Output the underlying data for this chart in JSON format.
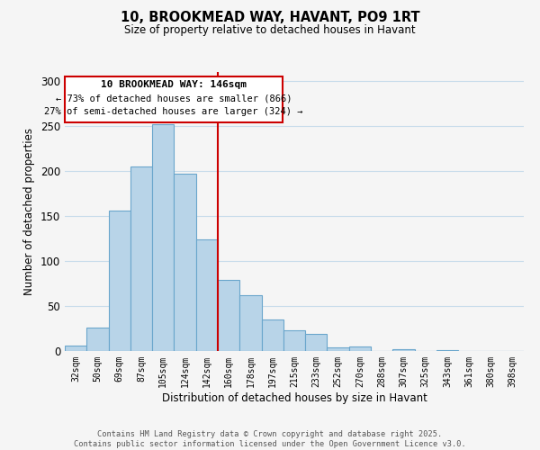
{
  "title": "10, BROOKMEAD WAY, HAVANT, PO9 1RT",
  "subtitle": "Size of property relative to detached houses in Havant",
  "xlabel": "Distribution of detached houses by size in Havant",
  "ylabel": "Number of detached properties",
  "bin_labels": [
    "32sqm",
    "50sqm",
    "69sqm",
    "87sqm",
    "105sqm",
    "124sqm",
    "142sqm",
    "160sqm",
    "178sqm",
    "197sqm",
    "215sqm",
    "233sqm",
    "252sqm",
    "270sqm",
    "288sqm",
    "307sqm",
    "325sqm",
    "343sqm",
    "361sqm",
    "380sqm",
    "398sqm"
  ],
  "bar_heights": [
    6,
    26,
    156,
    205,
    252,
    197,
    124,
    79,
    62,
    35,
    23,
    19,
    4,
    5,
    0,
    2,
    0,
    1,
    0,
    0,
    0
  ],
  "bar_color": "#b8d4e8",
  "bar_edge_color": "#6aa6cc",
  "vline_x": 6.5,
  "vline_color": "#cc0000",
  "annotation_title": "10 BROOKMEAD WAY: 146sqm",
  "annotation_line1": "← 73% of detached houses are smaller (866)",
  "annotation_line2": "27% of semi-detached houses are larger (324) →",
  "annotation_box_color": "#ffffff",
  "annotation_box_edge": "#cc0000",
  "ylim": [
    0,
    310
  ],
  "yticks": [
    0,
    50,
    100,
    150,
    200,
    250,
    300
  ],
  "footer_line1": "Contains HM Land Registry data © Crown copyright and database right 2025.",
  "footer_line2": "Contains public sector information licensed under the Open Government Licence v3.0.",
  "background_color": "#f5f5f5",
  "grid_color": "#c8dcea"
}
